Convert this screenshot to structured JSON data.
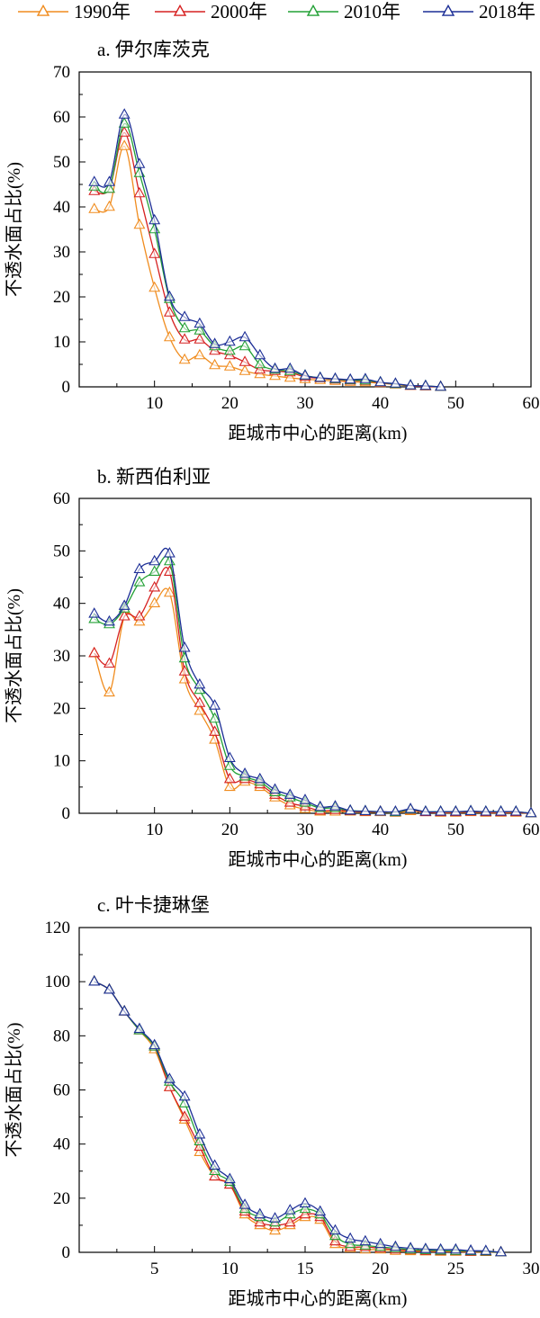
{
  "legend": [
    {
      "label": "1990年",
      "color": "#f08c1e"
    },
    {
      "label": "2000年",
      "color": "#d62020"
    },
    {
      "label": "2010年",
      "color": "#22a035"
    },
    {
      "label": "2018年",
      "color": "#1c2e96"
    }
  ],
  "chart_data": [
    {
      "type": "line",
      "title": "a. 伊尔库茨克",
      "xlabel": "距城市中心的距离(km)",
      "ylabel": "不透水面占比(%)",
      "xlim": [
        0,
        60
      ],
      "ylim": [
        0,
        70
      ],
      "xticks": [
        10,
        20,
        30,
        40,
        50,
        60
      ],
      "yticks": [
        0,
        10,
        20,
        30,
        40,
        50,
        60,
        70
      ],
      "grid": false,
      "legend_position": "top",
      "series": [
        {
          "name": "1990年",
          "x": [
            2,
            4,
            6,
            8,
            10,
            12,
            14,
            16,
            18,
            20,
            22,
            24,
            26,
            28,
            30,
            32,
            34,
            36,
            38,
            40,
            42,
            44,
            46,
            48
          ],
          "y": [
            39.5,
            40,
            53.5,
            36,
            22,
            11,
            6,
            7,
            4.8,
            4.5,
            3.5,
            2.8,
            2.4,
            2,
            1.7,
            1.5,
            1.3,
            1.1,
            1,
            0.8,
            0.5,
            0.2,
            0.1,
            0
          ]
        },
        {
          "name": "2000年",
          "x": [
            2,
            4,
            6,
            8,
            10,
            12,
            14,
            16,
            18,
            20,
            22,
            24,
            26,
            28,
            30,
            32,
            34,
            36,
            38,
            40,
            42,
            44,
            46,
            48
          ],
          "y": [
            43.5,
            44,
            56.5,
            43,
            29.5,
            16.5,
            10.5,
            10.5,
            8,
            7,
            5.5,
            3.8,
            3.5,
            3.2,
            2.2,
            1.9,
            1.6,
            1.4,
            1.3,
            0.9,
            0.6,
            0.2,
            0.1,
            0
          ]
        },
        {
          "name": "2010年",
          "x": [
            2,
            4,
            6,
            8,
            10,
            12,
            14,
            16,
            18,
            20,
            22,
            24,
            26,
            28,
            30,
            32,
            34,
            36,
            38,
            40,
            42,
            44,
            46,
            48
          ],
          "y": [
            44.5,
            44,
            58.5,
            47.5,
            35,
            19.5,
            13,
            12.5,
            9,
            8,
            9,
            5,
            3.8,
            3.5,
            2.5,
            2,
            1.7,
            1.5,
            1.4,
            1,
            0.6,
            0.3,
            0.2,
            0
          ]
        },
        {
          "name": "2018年",
          "x": [
            2,
            4,
            6,
            8,
            10,
            12,
            14,
            16,
            18,
            20,
            22,
            24,
            26,
            28,
            30,
            32,
            34,
            36,
            38,
            40,
            42,
            44,
            46,
            48
          ],
          "y": [
            45.5,
            45.5,
            60.5,
            49.5,
            37,
            20,
            15.5,
            14,
            9.5,
            10,
            11,
            7,
            4,
            4,
            2.5,
            2,
            1.8,
            1.6,
            1.7,
            1,
            0.7,
            0.3,
            0.2,
            0
          ]
        }
      ]
    },
    {
      "type": "line",
      "title": "b. 新西伯利亚",
      "xlabel": "距城市中心的距离(km)",
      "ylabel": "不透水面占比(%)",
      "xlim": [
        0,
        60
      ],
      "ylim": [
        0,
        60
      ],
      "xticks": [
        10,
        20,
        30,
        40,
        50,
        60
      ],
      "yticks": [
        0,
        10,
        20,
        30,
        40,
        50,
        60
      ],
      "grid": false,
      "series": [
        {
          "name": "1990年",
          "x": [
            2,
            4,
            6,
            8,
            10,
            12,
            14,
            16,
            18,
            20,
            22,
            24,
            26,
            28,
            30,
            32,
            34,
            36,
            38,
            40,
            42,
            44,
            46,
            48,
            50,
            52,
            54,
            56,
            58,
            60
          ],
          "y": [
            30.5,
            23,
            37.5,
            36.5,
            40,
            42,
            25.5,
            19.5,
            14,
            5,
            6,
            5,
            3,
            1.5,
            0.8,
            0.3,
            0.3,
            0.3,
            0.2,
            0.2,
            0.1,
            0.4,
            0.2,
            0.1,
            0.1,
            0.2,
            0.1,
            0.1,
            0.1,
            0
          ]
        },
        {
          "name": "2000年",
          "x": [
            2,
            4,
            6,
            8,
            10,
            12,
            14,
            16,
            18,
            20,
            22,
            24,
            26,
            28,
            30,
            32,
            34,
            36,
            38,
            40,
            42,
            44,
            46,
            48,
            50,
            52,
            54,
            56,
            58,
            60
          ],
          "y": [
            30.5,
            28.5,
            37.5,
            37.5,
            43,
            46,
            27,
            21,
            15.5,
            6.5,
            6.5,
            5.5,
            3.5,
            2,
            1.3,
            0.5,
            0.6,
            0.4,
            0.3,
            0.3,
            0.2,
            0.6,
            0.2,
            0.2,
            0.2,
            0.3,
            0.2,
            0.2,
            0.2,
            0
          ]
        },
        {
          "name": "2010年",
          "x": [
            2,
            4,
            6,
            8,
            10,
            12,
            14,
            16,
            18,
            20,
            22,
            24,
            26,
            28,
            30,
            32,
            34,
            36,
            38,
            40,
            42,
            44,
            46,
            48,
            50,
            52,
            54,
            56,
            58,
            60
          ],
          "y": [
            37,
            36,
            39,
            44,
            46,
            48,
            29.5,
            23.5,
            18,
            9,
            7,
            6,
            4,
            3,
            2,
            1,
            1,
            0.5,
            0.4,
            0.3,
            0.2,
            0.7,
            0.3,
            0.3,
            0.3,
            0.4,
            0.3,
            0.3,
            0.3,
            0
          ]
        },
        {
          "name": "2018年",
          "x": [
            2,
            4,
            6,
            8,
            10,
            12,
            14,
            16,
            18,
            20,
            22,
            24,
            26,
            28,
            30,
            32,
            34,
            36,
            38,
            40,
            42,
            44,
            46,
            48,
            50,
            52,
            54,
            56,
            58,
            60
          ],
          "y": [
            38,
            36.5,
            39.5,
            46.5,
            48,
            49.5,
            31.5,
            24.5,
            20.5,
            10.5,
            7.5,
            6.5,
            4.5,
            3.5,
            2.5,
            1.2,
            1.3,
            0.5,
            0.4,
            0.3,
            0.3,
            0.8,
            0.3,
            0.3,
            0.3,
            0.4,
            0.3,
            0.3,
            0.3,
            0
          ]
        }
      ]
    },
    {
      "type": "line",
      "title": "c. 叶卡捷琳堡",
      "xlabel": "距城市中心的距离(km)",
      "ylabel": "不透水面占比(%)",
      "xlim": [
        0,
        30
      ],
      "ylim": [
        0,
        120
      ],
      "xticks": [
        5,
        10,
        15,
        20,
        25,
        30
      ],
      "yticks": [
        0,
        20,
        40,
        60,
        80,
        100,
        120
      ],
      "grid": false,
      "series": [
        {
          "name": "1990年",
          "x": [
            1,
            2,
            3,
            4,
            5,
            6,
            7,
            8,
            9,
            10,
            11,
            12,
            13,
            14,
            15,
            16,
            17,
            18,
            19,
            20,
            21,
            22,
            23,
            24,
            25,
            26,
            27,
            28
          ],
          "y": [
            100,
            97,
            89,
            82,
            75,
            61,
            49,
            37,
            28,
            25,
            14,
            10,
            8,
            10,
            13,
            12,
            3,
            1.5,
            1,
            1,
            0.5,
            0.4,
            0.3,
            0.2,
            0.2,
            0.1,
            0.1,
            0
          ]
        },
        {
          "name": "2000年",
          "x": [
            1,
            2,
            3,
            4,
            5,
            6,
            7,
            8,
            9,
            10,
            11,
            12,
            13,
            14,
            15,
            16,
            17,
            18,
            19,
            20,
            21,
            22,
            23,
            24,
            25,
            26,
            27,
            28
          ],
          "y": [
            100,
            97,
            89,
            82,
            76,
            61,
            50,
            39,
            28,
            25,
            15,
            11,
            10,
            11,
            14,
            13,
            4,
            2,
            2,
            1.5,
            1,
            0.8,
            0.5,
            0.4,
            0.4,
            0.2,
            0.2,
            0
          ]
        },
        {
          "name": "2010年",
          "x": [
            1,
            2,
            3,
            4,
            5,
            6,
            7,
            8,
            9,
            10,
            11,
            12,
            13,
            14,
            15,
            16,
            17,
            18,
            19,
            20,
            21,
            22,
            23,
            24,
            25,
            26,
            27,
            28
          ],
          "y": [
            100,
            97,
            89,
            82,
            76,
            63,
            55,
            41,
            30,
            26,
            16,
            13,
            11,
            14,
            16,
            14,
            6,
            3,
            2.5,
            2,
            1.5,
            1,
            0.8,
            0.6,
            0.5,
            0.4,
            0.3,
            0
          ]
        },
        {
          "name": "2018年",
          "x": [
            1,
            2,
            3,
            4,
            5,
            6,
            7,
            8,
            9,
            10,
            11,
            12,
            13,
            14,
            15,
            16,
            17,
            18,
            19,
            20,
            21,
            22,
            23,
            24,
            25,
            26,
            27,
            28
          ],
          "y": [
            100,
            97,
            89,
            82.5,
            76.5,
            64,
            57.5,
            43.5,
            32,
            27,
            17.5,
            14,
            12.5,
            15.5,
            18,
            15,
            8,
            5,
            4,
            3,
            2,
            1.5,
            1.2,
            1,
            1,
            0.6,
            0.5,
            0
          ]
        }
      ]
    }
  ]
}
